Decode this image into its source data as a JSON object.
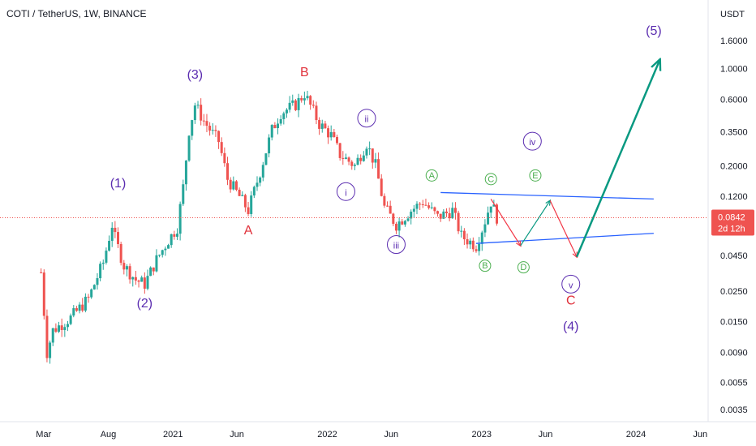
{
  "header": {
    "title": "COTI / TetherUS, 1W, BINANCE"
  },
  "chart_data": {
    "type": "candlestick",
    "title": "COTI / TetherUS, 1W, BINANCE",
    "yscale": "log",
    "y_unit_label": "USDT",
    "ylim": [
      0.0032,
      2.2
    ],
    "y_ticks": [
      "1.6000",
      "1.0000",
      "0.6000",
      "0.3500",
      "0.2000",
      "0.1200",
      "0.0450",
      "0.0250",
      "0.0150",
      "0.0090",
      "0.0055",
      "0.0035"
    ],
    "x_ticks": [
      "Mar",
      "Aug",
      "2021",
      "Jun",
      "2022",
      "Jun",
      "2023",
      "Jun",
      "2024",
      "Jun"
    ],
    "current_price": {
      "value": "0.0842",
      "countdown": "2d 12h"
    },
    "colors": {
      "up": "#26a69a",
      "down": "#ef5350",
      "trendline": "#2962ff",
      "projection_green": "#089981",
      "projection_red": "#f23645",
      "wave_purple": "#5b2db0",
      "wave_red": "#e0303a",
      "wave_green": "#4caf50"
    },
    "price_path": [
      [
        "2020-02-24",
        0.034
      ],
      [
        "2020-03-09",
        0.009
      ],
      [
        "2020-03-23",
        0.013
      ],
      [
        "2020-05-04",
        0.016
      ],
      [
        "2020-06-15",
        0.022
      ],
      [
        "2020-07-20",
        0.04
      ],
      [
        "2020-08-10",
        0.075
      ],
      [
        "2020-08-17",
        0.06
      ],
      [
        "2020-09-07",
        0.038
      ],
      [
        "2020-10-05",
        0.03
      ],
      [
        "2020-10-26",
        0.028
      ],
      [
        "2020-11-23",
        0.042
      ],
      [
        "2020-12-21",
        0.058
      ],
      [
        "2021-01-11",
        0.072
      ],
      [
        "2021-01-25",
        0.14
      ],
      [
        "2021-02-08",
        0.36
      ],
      [
        "2021-02-22",
        0.55
      ],
      [
        "2021-03-15",
        0.42
      ],
      [
        "2021-04-05",
        0.34
      ],
      [
        "2021-04-19",
        0.3
      ],
      [
        "2021-05-10",
        0.16
      ],
      [
        "2021-06-07",
        0.12
      ],
      [
        "2021-06-28",
        0.095
      ],
      [
        "2021-07-26",
        0.18
      ],
      [
        "2021-08-23",
        0.36
      ],
      [
        "2021-09-13",
        0.48
      ],
      [
        "2021-10-18",
        0.55
      ],
      [
        "2021-11-08",
        0.66
      ],
      [
        "2021-12-13",
        0.4
      ],
      [
        "2022-01-10",
        0.33
      ],
      [
        "2022-01-31",
        0.24
      ],
      [
        "2022-03-07",
        0.2
      ],
      [
        "2022-04-04",
        0.29
      ],
      [
        "2022-04-25",
        0.2
      ],
      [
        "2022-05-16",
        0.1
      ],
      [
        "2022-06-13",
        0.075
      ],
      [
        "2022-07-18",
        0.095
      ],
      [
        "2022-08-15",
        0.11
      ],
      [
        "2022-09-19",
        0.085
      ],
      [
        "2022-10-24",
        0.095
      ],
      [
        "2022-11-14",
        0.062
      ],
      [
        "2022-12-19",
        0.053
      ],
      [
        "2023-01-09",
        0.08
      ],
      [
        "2023-01-23",
        0.11
      ],
      [
        "2023-02-06",
        0.085
      ]
    ],
    "wave_labels": [
      {
        "text": "(1)",
        "date": "2020-08-24",
        "price": 0.14,
        "color": "purple"
      },
      {
        "text": "(2)",
        "date": "2020-10-26",
        "price": 0.019,
        "color": "purple"
      },
      {
        "text": "(3)",
        "date": "2021-02-22",
        "price": 0.85,
        "color": "purple"
      },
      {
        "text": "A",
        "date": "2021-06-28",
        "price": 0.064,
        "color": "red"
      },
      {
        "text": "B",
        "date": "2021-11-08",
        "price": 0.88,
        "color": "red"
      },
      {
        "text": "ii",
        "date": "2022-04-04",
        "price": 0.44,
        "color": "purple_circle"
      },
      {
        "text": "i",
        "date": "2022-02-14",
        "price": 0.13,
        "color": "purple_circle"
      },
      {
        "text": "iii",
        "date": "2022-06-13",
        "price": 0.054,
        "color": "purple_circle"
      },
      {
        "text": "iv",
        "date": "2023-05-01",
        "price": 0.3,
        "color": "purple_circle"
      },
      {
        "text": "v",
        "date": "2023-07-31",
        "price": 0.028,
        "color": "purple_circle"
      },
      {
        "text": "A",
        "date": "2022-09-05",
        "price": 0.17,
        "color": "green_circle"
      },
      {
        "text": "B",
        "date": "2023-01-09",
        "price": 0.038,
        "color": "green_circle"
      },
      {
        "text": "C",
        "date": "2023-01-23",
        "price": 0.16,
        "color": "green_circle"
      },
      {
        "text": "D",
        "date": "2023-04-10",
        "price": 0.037,
        "color": "green_circle"
      },
      {
        "text": "E",
        "date": "2023-05-08",
        "price": 0.17,
        "color": "green_circle"
      },
      {
        "text": "C",
        "date": "2023-07-31",
        "price": 0.02,
        "color": "red"
      },
      {
        "text": "(4)",
        "date": "2023-07-31",
        "price": 0.013,
        "color": "purple"
      },
      {
        "text": "(5)",
        "date": "2024-02-12",
        "price": 1.75,
        "color": "purple"
      }
    ],
    "triangle": {
      "upper": [
        [
          "2022-09-26",
          0.128
        ],
        [
          "2024-02-12",
          0.115
        ]
      ],
      "lower": [
        [
          "2022-12-19",
          0.055
        ],
        [
          "2024-02-12",
          0.065
        ]
      ]
    },
    "projection": [
      {
        "from": [
          "2023-01-23",
          0.115
        ],
        "to": [
          "2023-04-03",
          0.053
        ],
        "color": "red"
      },
      {
        "from": [
          "2023-04-03",
          0.053
        ],
        "to": [
          "2023-06-12",
          0.112
        ],
        "color": "green"
      },
      {
        "from": [
          "2023-06-12",
          0.112
        ],
        "to": [
          "2023-08-14",
          0.044
        ],
        "color": "red"
      },
      {
        "from": [
          "2023-08-14",
          0.044
        ],
        "to": [
          "2024-02-26",
          1.15
        ],
        "color": "green"
      }
    ]
  }
}
